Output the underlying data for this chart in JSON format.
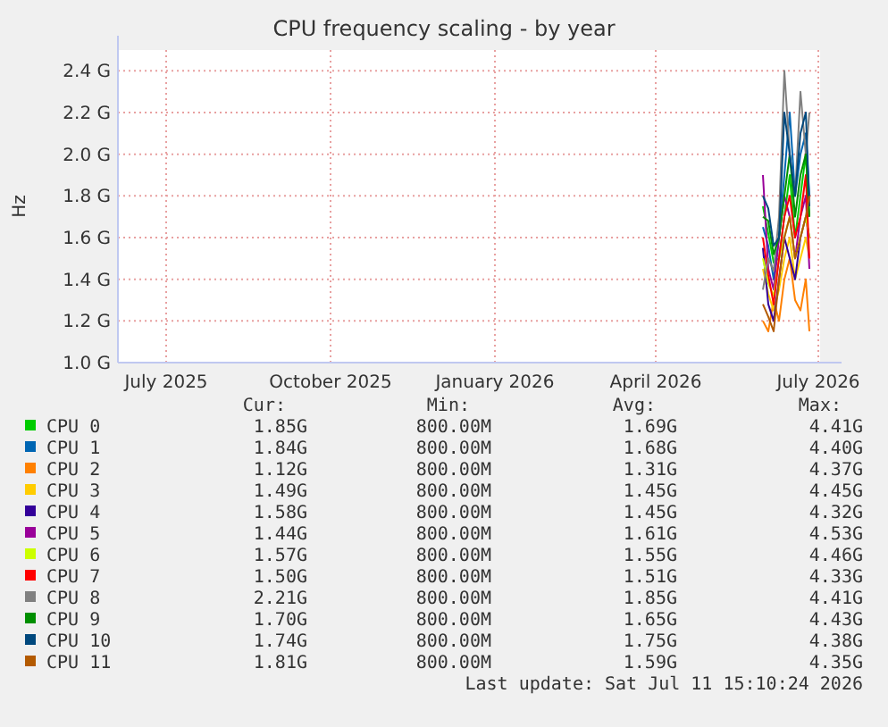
{
  "chart_data": {
    "type": "line",
    "title": "CPU frequency scaling - by year",
    "ylabel": "Hz",
    "xlim": [
      "2025-06-19",
      "2026-07-17"
    ],
    "xticks": [
      {
        "value": "2025-07-16",
        "label": "July 2025"
      },
      {
        "value": "2025-10-16",
        "label": "October 2025"
      },
      {
        "value": "2026-01-16",
        "label": "January 2026"
      },
      {
        "value": "2026-04-16",
        "label": "April 2026"
      },
      {
        "value": "2026-07-16",
        "label": "July 2026"
      }
    ],
    "ylim": [
      1.0,
      2.5
    ],
    "yticks": [
      {
        "value": 1.0,
        "label": "1.0 G"
      },
      {
        "value": 1.2,
        "label": "1.2 G"
      },
      {
        "value": 1.4,
        "label": "1.4 G"
      },
      {
        "value": 1.6,
        "label": "1.6 G"
      },
      {
        "value": 1.8,
        "label": "1.8 G"
      },
      {
        "value": 2.0,
        "label": "2.0 G"
      },
      {
        "value": 2.2,
        "label": "2.2 G"
      },
      {
        "value": 2.4,
        "label": "2.4 G"
      }
    ],
    "grid": true,
    "legend": "bottom",
    "line_style": "solid",
    "marker": "none",
    "x": [
      "2026-06-15",
      "2026-06-18",
      "2026-06-21",
      "2026-06-24",
      "2026-06-27",
      "2026-06-30",
      "2026-07-03",
      "2026-07-06",
      "2026-07-09",
      "2026-07-11"
    ],
    "series": [
      {
        "name": "CPU 0",
        "color": "#00cc00",
        "values": [
          1.75,
          1.62,
          1.48,
          1.5,
          1.7,
          1.9,
          1.6,
          1.8,
          2.0,
          1.7
        ]
      },
      {
        "name": "CPU 1",
        "color": "#0066b3",
        "values": [
          1.65,
          1.56,
          1.4,
          1.6,
          1.9,
          2.2,
          1.8,
          2.0,
          2.1,
          1.8
        ]
      },
      {
        "name": "CPU 2",
        "color": "#ff8000",
        "values": [
          1.2,
          1.15,
          1.3,
          1.2,
          1.4,
          1.5,
          1.3,
          1.25,
          1.4,
          1.15
        ]
      },
      {
        "name": "CPU 3",
        "color": "#ffcc00",
        "values": [
          1.45,
          1.33,
          1.25,
          1.35,
          1.5,
          1.6,
          1.4,
          1.5,
          1.6,
          1.5
        ]
      },
      {
        "name": "CPU 4",
        "color": "#330099",
        "values": [
          1.55,
          1.28,
          1.2,
          1.4,
          1.6,
          1.5,
          1.4,
          1.6,
          1.7,
          1.6
        ]
      },
      {
        "name": "CPU 5",
        "color": "#990099",
        "values": [
          1.9,
          1.45,
          1.35,
          1.6,
          1.8,
          1.7,
          1.5,
          1.7,
          1.8,
          1.45
        ]
      },
      {
        "name": "CPU 6",
        "color": "#ccff00",
        "values": [
          1.5,
          1.38,
          1.32,
          1.5,
          1.6,
          1.7,
          1.5,
          1.6,
          1.7,
          1.6
        ]
      },
      {
        "name": "CPU 7",
        "color": "#ff0000",
        "values": [
          1.6,
          1.42,
          1.28,
          1.5,
          1.7,
          1.8,
          1.6,
          1.7,
          1.9,
          1.5
        ]
      },
      {
        "name": "CPU 8",
        "color": "#808080",
        "values": [
          1.35,
          1.5,
          1.44,
          1.7,
          2.4,
          2.0,
          1.8,
          2.3,
          2.0,
          2.2
        ]
      },
      {
        "name": "CPU 9",
        "color": "#008f00",
        "values": [
          1.7,
          1.68,
          1.52,
          1.6,
          1.8,
          2.0,
          1.7,
          1.9,
          2.0,
          1.7
        ]
      },
      {
        "name": "CPU 10",
        "color": "#00487d",
        "values": [
          1.8,
          1.74,
          1.56,
          1.6,
          2.2,
          2.0,
          1.8,
          2.1,
          2.2,
          1.75
        ]
      },
      {
        "name": "CPU 11",
        "color": "#b35a00",
        "values": [
          1.28,
          1.22,
          1.15,
          1.4,
          1.6,
          1.7,
          1.5,
          1.6,
          1.7,
          1.8
        ]
      }
    ],
    "annotations": [
      "Cur:",
      "Min:",
      "Avg:",
      "Max:",
      "1.85G",
      "800.00M",
      "1.69G",
      "4.41G",
      "1.84G",
      "800.00M",
      "1.68G",
      "4.40G",
      "1.12G",
      "800.00M",
      "1.31G",
      "4.37G",
      "1.49G",
      "800.00M",
      "1.45G",
      "4.45G",
      "1.58G",
      "800.00M",
      "1.45G",
      "4.32G",
      "1.44G",
      "800.00M",
      "1.61G",
      "4.53G",
      "1.57G",
      "800.00M",
      "1.55G",
      "4.46G",
      "1.50G",
      "800.00M",
      "1.51G",
      "4.33G",
      "2.21G",
      "800.00M",
      "1.85G",
      "4.41G",
      "1.70G",
      "800.00M",
      "1.65G",
      "4.43G",
      "1.74G",
      "800.00M",
      "1.75G",
      "4.38G",
      "1.81G",
      "800.00M",
      "1.59G",
      "4.35G",
      "Last update: Sat Jul 11 15:10:24 2026"
    ]
  }
}
